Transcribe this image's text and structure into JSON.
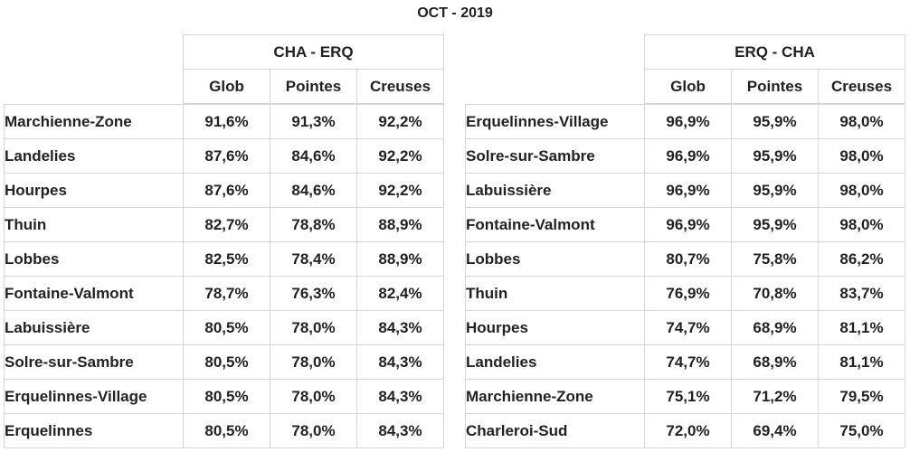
{
  "title": "OCT - 2019",
  "tables": [
    {
      "direction": "CHA - ERQ",
      "columns": [
        "Glob",
        "Pointes",
        "Creuses"
      ],
      "rows": [
        {
          "station": "Marchienne-Zone",
          "glob": "91,6%",
          "pointes": "91,3%",
          "creuses": "92,2%"
        },
        {
          "station": "Landelies",
          "glob": "87,6%",
          "pointes": "84,6%",
          "creuses": "92,2%"
        },
        {
          "station": "Hourpes",
          "glob": "87,6%",
          "pointes": "84,6%",
          "creuses": "92,2%"
        },
        {
          "station": "Thuin",
          "glob": "82,7%",
          "pointes": "78,8%",
          "creuses": "88,9%"
        },
        {
          "station": "Lobbes",
          "glob": "82,5%",
          "pointes": "78,4%",
          "creuses": "88,9%"
        },
        {
          "station": "Fontaine-Valmont",
          "glob": "78,7%",
          "pointes": "76,3%",
          "creuses": "82,4%"
        },
        {
          "station": "Labuissière",
          "glob": "80,5%",
          "pointes": "78,0%",
          "creuses": "84,3%"
        },
        {
          "station": "Solre-sur-Sambre",
          "glob": "80,5%",
          "pointes": "78,0%",
          "creuses": "84,3%"
        },
        {
          "station": "Erquelinnes-Village",
          "glob": "80,5%",
          "pointes": "78,0%",
          "creuses": "84,3%"
        },
        {
          "station": "Erquelinnes",
          "glob": "80,5%",
          "pointes": "78,0%",
          "creuses": "84,3%"
        }
      ]
    },
    {
      "direction": "ERQ - CHA",
      "columns": [
        "Glob",
        "Pointes",
        "Creuses"
      ],
      "rows": [
        {
          "station": "Erquelinnes-Village",
          "glob": "96,9%",
          "pointes": "95,9%",
          "creuses": "98,0%"
        },
        {
          "station": "Solre-sur-Sambre",
          "glob": "96,9%",
          "pointes": "95,9%",
          "creuses": "98,0%"
        },
        {
          "station": "Labuissière",
          "glob": "96,9%",
          "pointes": "95,9%",
          "creuses": "98,0%"
        },
        {
          "station": "Fontaine-Valmont",
          "glob": "96,9%",
          "pointes": "95,9%",
          "creuses": "98,0%"
        },
        {
          "station": "Lobbes",
          "glob": "80,7%",
          "pointes": "75,8%",
          "creuses": "86,2%"
        },
        {
          "station": "Thuin",
          "glob": "76,9%",
          "pointes": "70,8%",
          "creuses": "83,7%"
        },
        {
          "station": "Hourpes",
          "glob": "74,7%",
          "pointes": "68,9%",
          "creuses": "81,1%"
        },
        {
          "station": "Landelies",
          "glob": "74,7%",
          "pointes": "68,9%",
          "creuses": "81,1%"
        },
        {
          "station": "Marchienne-Zone",
          "glob": "75,1%",
          "pointes": "71,2%",
          "creuses": "79,5%"
        },
        {
          "station": "Charleroi-Sud",
          "glob": "72,0%",
          "pointes": "69,4%",
          "creuses": "75,0%"
        }
      ]
    }
  ]
}
